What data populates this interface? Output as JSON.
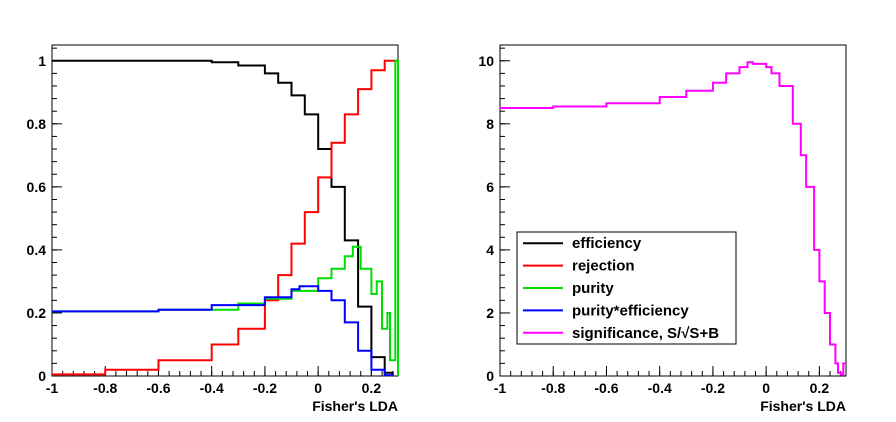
{
  "chart_data": [
    {
      "type": "line",
      "xlabel": "Fisher's LDA",
      "ylabel": "",
      "xlim": [
        -1.0,
        0.3
      ],
      "ylim": [
        0.0,
        1.05
      ],
      "xticks": [
        -1,
        -0.8,
        -0.6,
        -0.4,
        -0.2,
        0,
        0.2
      ],
      "xtick_labels": [
        "-1",
        "-0.8",
        "-0.6",
        "-0.4",
        "-0.2",
        "0",
        "0.2"
      ],
      "yticks": [
        0,
        0.2,
        0.4,
        0.6,
        0.8,
        1
      ],
      "ytick_labels": [
        "0",
        "0.2",
        "0.4",
        "0.6",
        "0.8",
        "1"
      ],
      "series": [
        {
          "name": "efficiency",
          "color": "#000000",
          "x": [
            -1.0,
            -0.6,
            -0.4,
            -0.3,
            -0.2,
            -0.15,
            -0.1,
            -0.05,
            0.0,
            0.05,
            0.1,
            0.15,
            0.2,
            0.25,
            0.28
          ],
          "y": [
            1.0,
            1.0,
            0.995,
            0.985,
            0.96,
            0.93,
            0.89,
            0.83,
            0.72,
            0.6,
            0.43,
            0.22,
            0.06,
            0.01,
            0.0
          ]
        },
        {
          "name": "rejection",
          "color": "#ff0000",
          "x": [
            -1.0,
            -0.8,
            -0.6,
            -0.4,
            -0.3,
            -0.2,
            -0.15,
            -0.1,
            -0.05,
            0.0,
            0.05,
            0.1,
            0.15,
            0.2,
            0.25,
            0.3
          ],
          "y": [
            0.005,
            0.02,
            0.05,
            0.1,
            0.15,
            0.24,
            0.32,
            0.42,
            0.52,
            0.63,
            0.74,
            0.83,
            0.91,
            0.97,
            1.0,
            1.0
          ]
        },
        {
          "name": "purity",
          "color": "#00dd00",
          "x": [
            -1.0,
            -0.6,
            -0.3,
            -0.2,
            -0.1,
            0.0,
            0.05,
            0.1,
            0.13,
            0.16,
            0.2,
            0.22,
            0.24,
            0.26,
            0.27,
            0.28,
            0.29,
            0.3
          ],
          "y": [
            0.205,
            0.21,
            0.23,
            0.245,
            0.27,
            0.31,
            0.34,
            0.38,
            0.41,
            0.34,
            0.26,
            0.3,
            0.15,
            0.2,
            0.05,
            0.05,
            1.0,
            0.0
          ]
        },
        {
          "name": "purity*efficiency",
          "color": "#0000ff",
          "x": [
            -1.0,
            -0.6,
            -0.4,
            -0.2,
            -0.1,
            -0.07,
            0.0,
            0.05,
            0.1,
            0.15,
            0.2,
            0.25,
            0.28
          ],
          "y": [
            0.205,
            0.21,
            0.225,
            0.25,
            0.275,
            0.285,
            0.27,
            0.24,
            0.17,
            0.08,
            0.02,
            0.003,
            0.0
          ]
        }
      ]
    },
    {
      "type": "line",
      "xlabel": "Fisher's LDA",
      "ylabel": "",
      "xlim": [
        -1.0,
        0.3
      ],
      "ylim": [
        0,
        10.5
      ],
      "xticks": [
        -1,
        -0.8,
        -0.6,
        -0.4,
        -0.2,
        0,
        0.2
      ],
      "xtick_labels": [
        "-1",
        "-0.8",
        "-0.6",
        "-0.4",
        "-0.2",
        "0",
        "0.2"
      ],
      "yticks": [
        0,
        2,
        4,
        6,
        8,
        10
      ],
      "ytick_labels": [
        "0",
        "2",
        "4",
        "6",
        "8",
        "10"
      ],
      "series": [
        {
          "name": "significance, S/√S+B",
          "color": "#ff00ff",
          "x": [
            -1.0,
            -0.8,
            -0.6,
            -0.4,
            -0.3,
            -0.2,
            -0.15,
            -0.1,
            -0.07,
            -0.05,
            0.0,
            0.02,
            0.05,
            0.1,
            0.13,
            0.15,
            0.18,
            0.2,
            0.22,
            0.24,
            0.26,
            0.27,
            0.28,
            0.29,
            0.3
          ],
          "y": [
            8.5,
            8.55,
            8.65,
            8.85,
            9.05,
            9.3,
            9.6,
            9.8,
            9.95,
            9.9,
            9.8,
            9.6,
            9.2,
            8.0,
            7.0,
            6.0,
            4.0,
            3.0,
            2.0,
            1.0,
            0.4,
            0.1,
            0.05,
            0.4,
            0.4
          ]
        }
      ],
      "legend": {
        "placement": "center-left",
        "entries": [
          {
            "label": "efficiency",
            "color": "#000000"
          },
          {
            "label": "rejection",
            "color": "#ff0000"
          },
          {
            "label": "purity",
            "color": "#00dd00"
          },
          {
            "label": "purity*efficiency",
            "color": "#0000ff"
          },
          {
            "label": "significance, S/√S+B",
            "color": "#ff00ff"
          }
        ]
      }
    }
  ]
}
